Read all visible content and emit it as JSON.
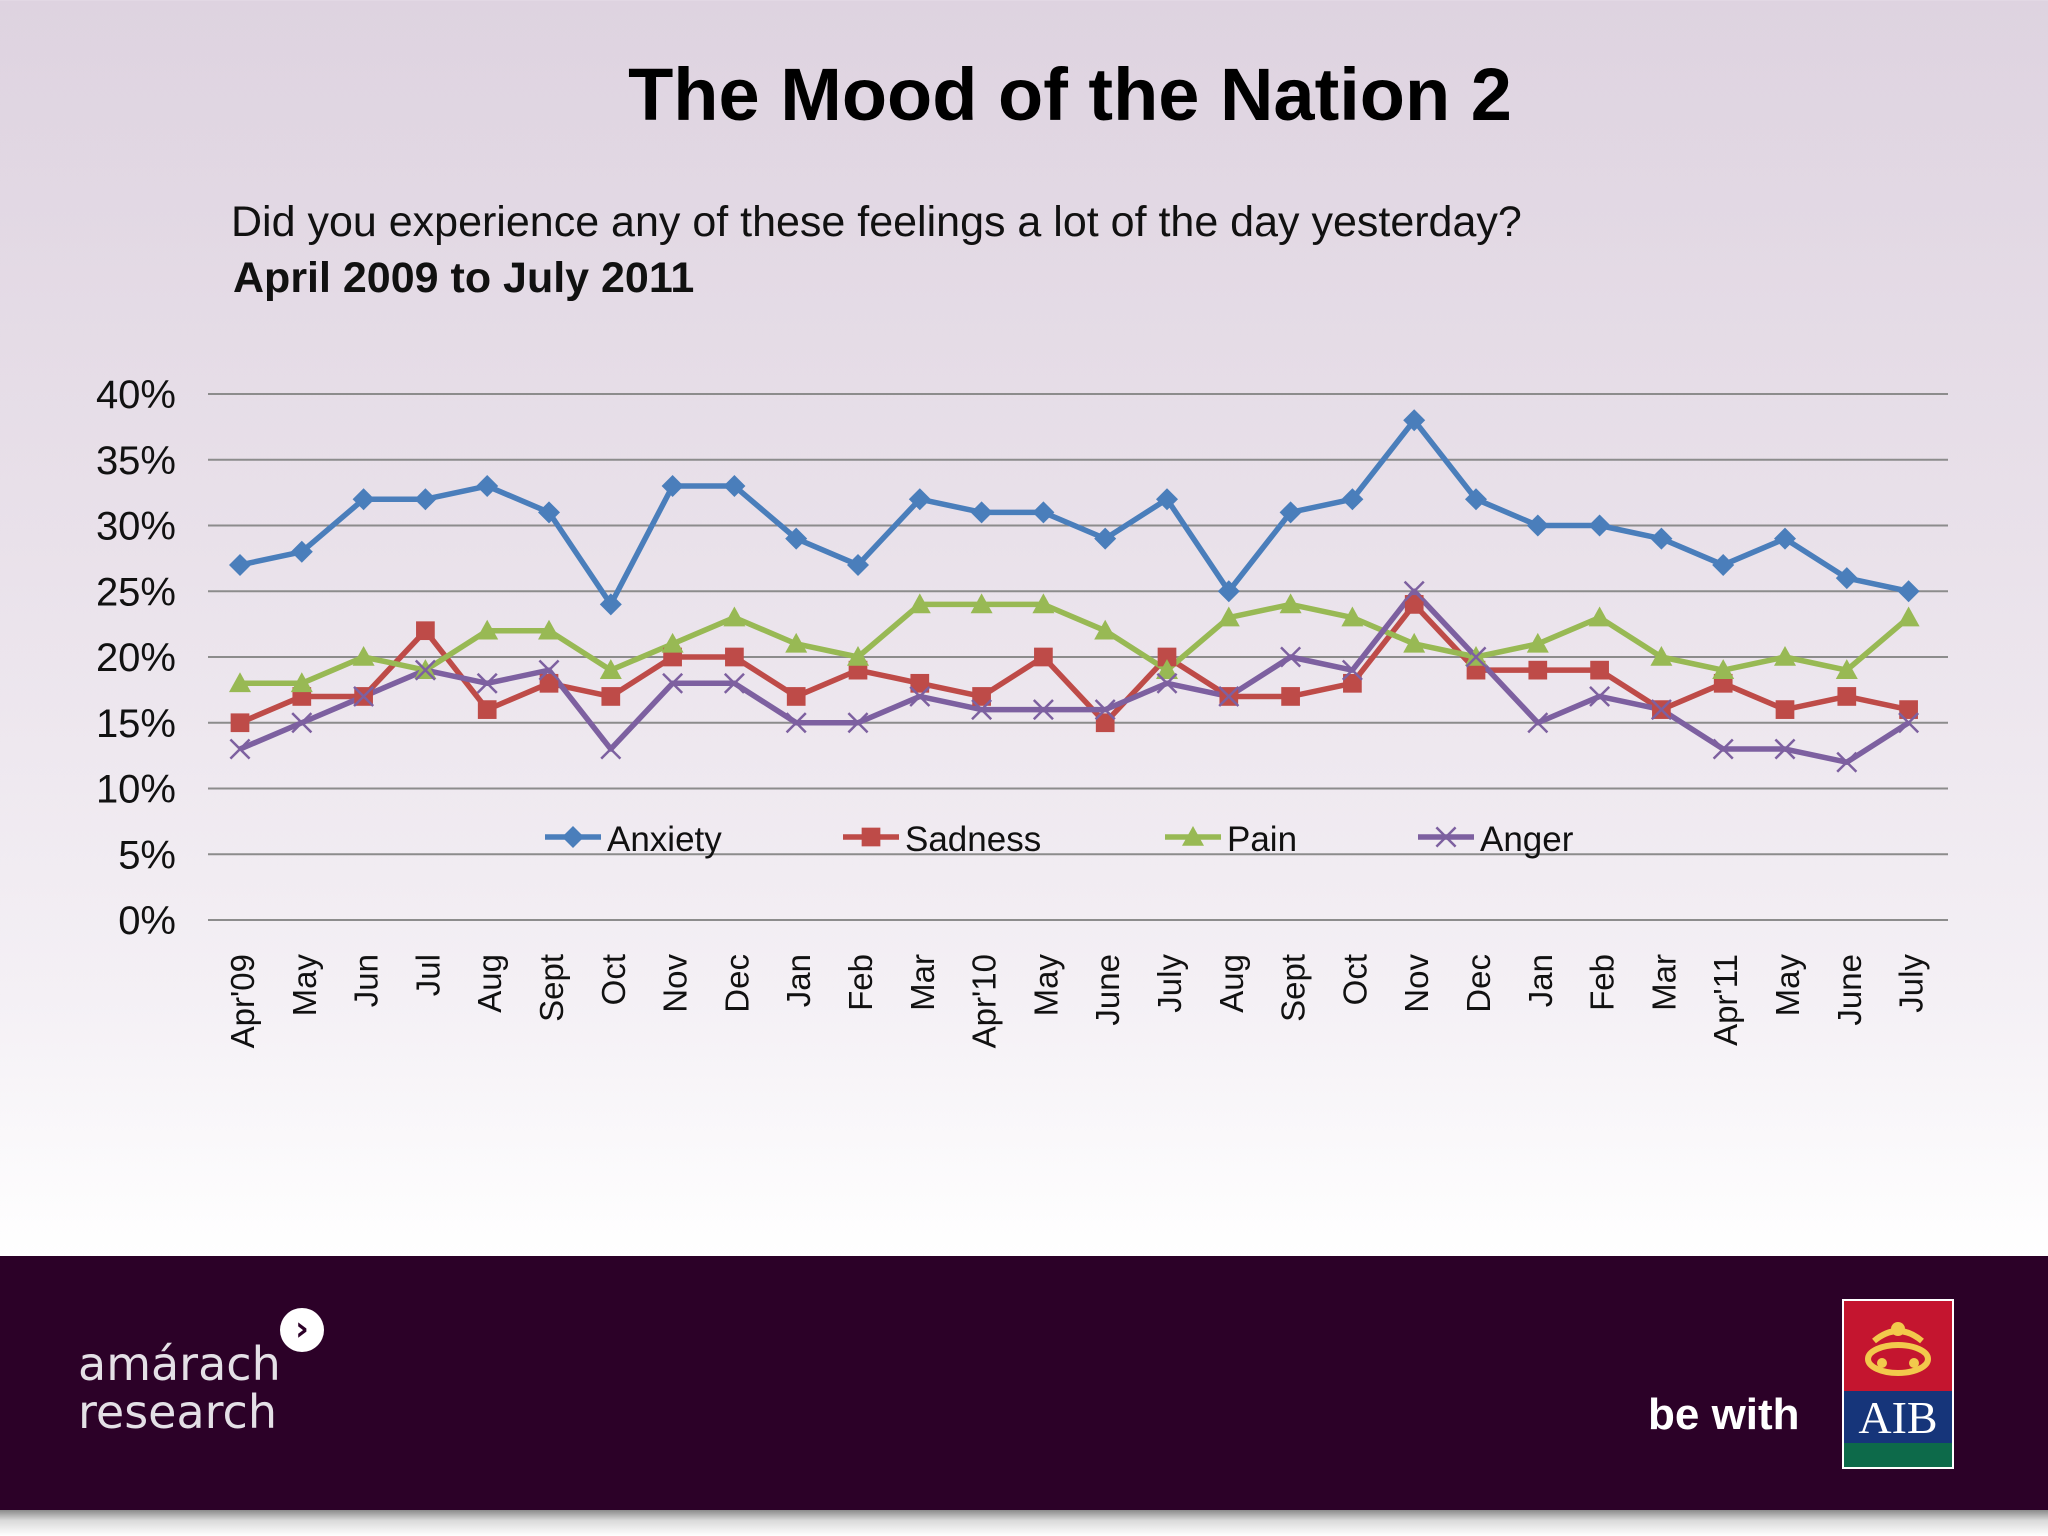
{
  "slide": {
    "title": "The Mood of the Nation 2",
    "question": "Did you experience any of these feelings a lot of the day yesterday?",
    "period": "April 2009 to July 2011"
  },
  "footer": {
    "left_logo_line1": "amárach",
    "left_logo_line2": "research",
    "right_text": "be with",
    "right_logo_text": "AIB"
  },
  "chart_data": {
    "type": "line",
    "ylim": [
      0,
      40
    ],
    "yticks": [
      "0%",
      "5%",
      "10%",
      "15%",
      "20%",
      "25%",
      "30%",
      "35%",
      "40%"
    ],
    "grid": true,
    "legend_position": "inside-bottom",
    "categories": [
      "Apr'09",
      "May",
      "Jun",
      "Jul",
      "Aug",
      "Sept",
      "Oct",
      "Nov",
      "Dec",
      "Jan",
      "Feb",
      "Mar",
      "Apr'10",
      "May",
      "June",
      "July",
      "Aug",
      "Sept",
      "Oct",
      "Nov",
      "Dec",
      "Jan",
      "Feb",
      "Mar",
      "Apr'11",
      "May",
      "June",
      "July"
    ],
    "series": [
      {
        "name": "Anxiety",
        "color": "#4a7ebb",
        "marker": "diamond",
        "values": [
          27,
          28,
          32,
          32,
          33,
          31,
          24,
          33,
          33,
          29,
          27,
          32,
          31,
          31,
          29,
          32,
          25,
          31,
          32,
          38,
          32,
          30,
          30,
          29,
          27,
          29,
          26,
          25
        ]
      },
      {
        "name": "Sadness",
        "color": "#be4b48",
        "marker": "square",
        "values": [
          15,
          17,
          17,
          22,
          16,
          18,
          17,
          20,
          20,
          17,
          19,
          18,
          17,
          20,
          15,
          20,
          17,
          17,
          18,
          24,
          19,
          19,
          19,
          16,
          18,
          16,
          17,
          16
        ]
      },
      {
        "name": "Pain",
        "color": "#98b954",
        "marker": "triangle",
        "values": [
          18,
          18,
          20,
          19,
          22,
          22,
          19,
          21,
          23,
          21,
          20,
          24,
          24,
          24,
          22,
          19,
          23,
          24,
          23,
          21,
          20,
          21,
          23,
          20,
          19,
          20,
          19,
          23
        ]
      },
      {
        "name": "Anger",
        "color": "#7d60a0",
        "marker": "x",
        "values": [
          13,
          15,
          17,
          19,
          18,
          19,
          13,
          18,
          18,
          15,
          15,
          17,
          16,
          16,
          16,
          18,
          17,
          20,
          19,
          25,
          20,
          15,
          17,
          16,
          13,
          13,
          12,
          15
        ]
      }
    ]
  }
}
